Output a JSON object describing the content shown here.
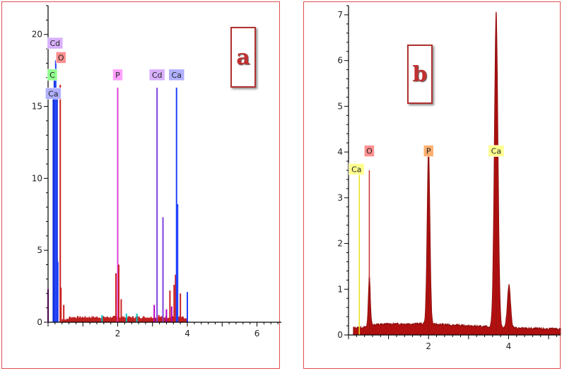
{
  "panels": [
    {
      "id": "a",
      "letter": "a",
      "colors": {
        "accent": "#cc3333"
      }
    },
    {
      "id": "b",
      "letter": "b",
      "colors": {
        "accent": "#b01818"
      }
    }
  ],
  "chart_data": [
    {
      "type": "line",
      "panel": "a",
      "title": "",
      "xlabel": "",
      "ylabel": "",
      "xlim": [
        0,
        6.7
      ],
      "ylim": [
        0,
        22
      ],
      "x_ticks": [
        2,
        4,
        6
      ],
      "y_ticks": [
        0,
        5,
        10,
        15,
        20
      ],
      "grid": false,
      "peaks": [
        {
          "x": 0.15,
          "y": 15.5,
          "color": "#1030e0"
        },
        {
          "x": 0.18,
          "y": 17.0,
          "color": "#1030e0"
        },
        {
          "x": 0.22,
          "y": 18.2,
          "color": "#2040ff"
        },
        {
          "x": 0.26,
          "y": 15.8,
          "color": "#1030e0"
        },
        {
          "x": 0.28,
          "y": 4.2,
          "color": "#2040ff"
        },
        {
          "x": 0.35,
          "y": 16.5,
          "color": "#cc2020"
        },
        {
          "x": 0.37,
          "y": 2.4,
          "color": "#cc2020"
        },
        {
          "x": 0.0,
          "y": 2.3,
          "color": "#b000c0"
        },
        {
          "x": 0.45,
          "y": 1.2,
          "color": "#cc2020"
        },
        {
          "x": 1.55,
          "y": 0.5,
          "color": "#00c0c0"
        },
        {
          "x": 1.95,
          "y": 3.4,
          "color": "#cc2020"
        },
        {
          "x": 2.0,
          "y": 16.3,
          "color": "#e040e0"
        },
        {
          "x": 2.03,
          "y": 4.0,
          "color": "#cc2020"
        },
        {
          "x": 2.1,
          "y": 1.6,
          "color": "#cc2020"
        },
        {
          "x": 2.25,
          "y": 0.6,
          "color": "#00c0c0"
        },
        {
          "x": 2.55,
          "y": 0.6,
          "color": "#00c0c0"
        },
        {
          "x": 3.05,
          "y": 1.2,
          "color": "#b000c0"
        },
        {
          "x": 3.13,
          "y": 16.3,
          "color": "#8040e0"
        },
        {
          "x": 3.18,
          "y": 0.5,
          "color": "#cc2020"
        },
        {
          "x": 3.3,
          "y": 7.3,
          "color": "#8040e0"
        },
        {
          "x": 3.5,
          "y": 2.2,
          "color": "#cc2020"
        },
        {
          "x": 3.62,
          "y": 2.6,
          "color": "#cc2020"
        },
        {
          "x": 3.66,
          "y": 3.3,
          "color": "#cc2020"
        },
        {
          "x": 3.69,
          "y": 16.3,
          "color": "#2040ff"
        },
        {
          "x": 3.72,
          "y": 8.2,
          "color": "#2040ff"
        },
        {
          "x": 3.8,
          "y": 2.0,
          "color": "#cc2020"
        },
        {
          "x": 4.0,
          "y": 2.1,
          "color": "#2040ff"
        },
        {
          "x": 3.4,
          "y": 0.9,
          "color": "#b000c0"
        },
        {
          "x": 3.55,
          "y": 1.1,
          "color": "#b000c0"
        }
      ],
      "element_labels": [
        {
          "text": "Cd",
          "x": 0.2,
          "y": 19.0,
          "color": "#d8b0ff"
        },
        {
          "text": "O",
          "x": 0.37,
          "y": 18.0,
          "color": "#ff9090"
        },
        {
          "text": "C",
          "x": 0.12,
          "y": 16.8,
          "color": "#90ff90"
        },
        {
          "text": "Ca",
          "x": 0.15,
          "y": 15.5,
          "color": "#b0b0ff"
        },
        {
          "text": "P",
          "x": 2.0,
          "y": 16.8,
          "color": "#ffa0ff"
        },
        {
          "text": "Cd",
          "x": 3.13,
          "y": 16.8,
          "color": "#d8b0ff"
        },
        {
          "text": "Ca",
          "x": 3.69,
          "y": 16.8,
          "color": "#b0b0ff"
        }
      ]
    },
    {
      "type": "area",
      "panel": "b",
      "title": "",
      "xlabel": "",
      "ylabel": "",
      "xlim": [
        0,
        5.3
      ],
      "ylim": [
        0,
        7.2
      ],
      "x_ticks": [
        2,
        4
      ],
      "y_ticks": [
        0,
        1,
        2,
        3,
        4,
        5,
        6,
        7
      ],
      "grid": false,
      "peaks": [
        {
          "x": 0.27,
          "y": 3.5,
          "color": "#e8e020"
        },
        {
          "x": 0.52,
          "y": 3.6,
          "color": "#cc3030"
        },
        {
          "x": 0.52,
          "y": 1.25,
          "color": "#a01010"
        },
        {
          "x": 2.0,
          "y": 4.05,
          "color": "#a01010"
        },
        {
          "x": 3.69,
          "y": 7.05,
          "color": "#a01010"
        },
        {
          "x": 4.01,
          "y": 1.07,
          "color": "#a01010"
        }
      ],
      "element_labels": [
        {
          "text": "O",
          "x": 0.52,
          "y": 3.9,
          "color": "#ff9090"
        },
        {
          "text": "Ca",
          "x": 0.2,
          "y": 3.5,
          "color": "#ffff90"
        },
        {
          "text": "P",
          "x": 2.0,
          "y": 3.9,
          "color": "#ffb070"
        },
        {
          "text": "Ca",
          "x": 3.69,
          "y": 3.9,
          "color": "#ffff90"
        }
      ]
    }
  ]
}
